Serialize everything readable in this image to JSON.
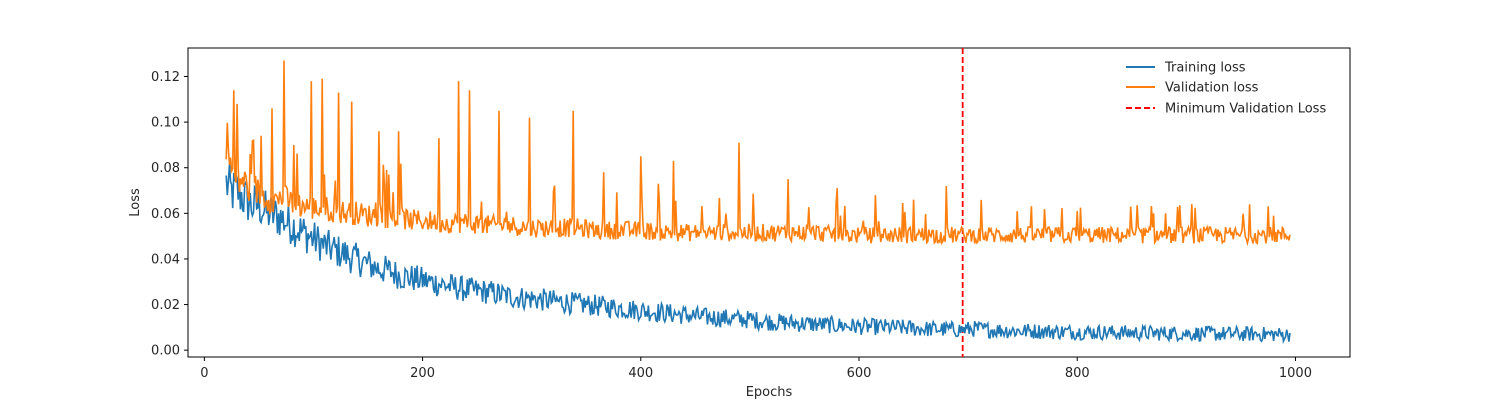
{
  "chart_data": {
    "type": "line",
    "title": "",
    "xlabel": "Epochs",
    "ylabel": "Loss",
    "xlim": [
      -15,
      1050
    ],
    "ylim": [
      -0.003,
      0.1325
    ],
    "xticks": [
      0,
      200,
      400,
      600,
      800,
      1000
    ],
    "yticks": [
      0.0,
      0.02,
      0.04,
      0.06,
      0.08,
      0.1,
      0.12
    ],
    "xtick_labels": [
      "0",
      "200",
      "400",
      "600",
      "800",
      "1000"
    ],
    "ytick_labels": [
      "0.00",
      "0.02",
      "0.04",
      "0.06",
      "0.08",
      "0.10",
      "0.12"
    ],
    "grid": false,
    "legend": {
      "placement": "top-right",
      "entries": [
        "Training loss",
        "Validation loss",
        "Minimum Validation Loss"
      ]
    },
    "colors": {
      "training": "#1f77b4",
      "validation": "#ff7f0e",
      "minimum": "#ff0000"
    },
    "series": [
      {
        "name": "Training loss",
        "x": [
          20,
          25,
          30,
          35,
          40,
          45,
          50,
          55,
          60,
          65,
          70,
          80,
          90,
          100,
          110,
          120,
          130,
          140,
          150,
          160,
          170,
          180,
          190,
          200,
          220,
          240,
          260,
          280,
          300,
          320,
          340,
          360,
          380,
          400,
          420,
          440,
          460,
          480,
          500,
          520,
          540,
          560,
          580,
          600,
          620,
          640,
          660,
          680,
          695,
          705,
          720,
          740,
          760,
          780,
          800,
          820,
          840,
          860,
          880,
          900,
          920,
          940,
          960,
          980,
          995
        ],
        "y": [
          0.072,
          0.068,
          0.069,
          0.066,
          0.064,
          0.062,
          0.063,
          0.06,
          0.059,
          0.058,
          0.057,
          0.054,
          0.051,
          0.048,
          0.045,
          0.043,
          0.041,
          0.039,
          0.037,
          0.035,
          0.034,
          0.032,
          0.031,
          0.03,
          0.028,
          0.026,
          0.025,
          0.023,
          0.022,
          0.021,
          0.02,
          0.019,
          0.018,
          0.017,
          0.016,
          0.015,
          0.014,
          0.0135,
          0.013,
          0.012,
          0.0115,
          0.011,
          0.0105,
          0.01,
          0.0098,
          0.0095,
          0.009,
          0.0088,
          0.0086,
          0.009,
          0.0085,
          0.0082,
          0.008,
          0.0078,
          0.0076,
          0.0075,
          0.0073,
          0.0072,
          0.0071,
          0.007,
          0.0069,
          0.0068,
          0.0067,
          0.0066,
          0.0065
        ]
      },
      {
        "name": "Validation loss",
        "x": [
          20,
          25,
          30,
          35,
          40,
          45,
          50,
          55,
          60,
          65,
          70,
          80,
          90,
          100,
          110,
          120,
          130,
          140,
          150,
          160,
          170,
          180,
          190,
          200,
          220,
          240,
          260,
          280,
          300,
          320,
          340,
          360,
          380,
          400,
          420,
          440,
          460,
          480,
          500,
          520,
          540,
          560,
          580,
          600,
          620,
          640,
          660,
          680,
          695,
          705,
          720,
          740,
          760,
          780,
          800,
          820,
          840,
          860,
          880,
          900,
          920,
          940,
          960,
          980,
          995
        ],
        "y": [
          0.09,
          0.075,
          0.07,
          0.072,
          0.068,
          0.069,
          0.066,
          0.065,
          0.064,
          0.063,
          0.065,
          0.062,
          0.061,
          0.06,
          0.06,
          0.059,
          0.058,
          0.058,
          0.057,
          0.057,
          0.056,
          0.056,
          0.055,
          0.055,
          0.054,
          0.054,
          0.053,
          0.053,
          0.052,
          0.052,
          0.052,
          0.051,
          0.051,
          0.051,
          0.05,
          0.05,
          0.05,
          0.05,
          0.05,
          0.05,
          0.05,
          0.05,
          0.049,
          0.049,
          0.049,
          0.049,
          0.049,
          0.049,
          0.049,
          0.049,
          0.049,
          0.049,
          0.049,
          0.049,
          0.049,
          0.049,
          0.049,
          0.049,
          0.049,
          0.049,
          0.049,
          0.049,
          0.049,
          0.049,
          0.049
        ]
      }
    ],
    "min_validation_epoch": 695,
    "spikes": {
      "x": [
        27,
        30,
        42,
        52,
        62,
        73,
        82,
        98,
        108,
        123,
        135,
        160,
        178,
        215,
        233,
        243,
        270,
        298,
        338,
        366,
        400,
        430,
        490,
        535,
        580,
        615,
        650,
        680,
        745,
        800,
        870,
        905,
        980
      ],
      "y": [
        0.114,
        0.108,
        0.086,
        0.094,
        0.106,
        0.127,
        0.09,
        0.118,
        0.119,
        0.113,
        0.109,
        0.096,
        0.096,
        0.093,
        0.118,
        0.114,
        0.105,
        0.102,
        0.105,
        0.078,
        0.085,
        0.083,
        0.091,
        0.075,
        0.071,
        0.068,
        0.066,
        0.072,
        0.061,
        0.061,
        0.06,
        0.064,
        0.059
      ]
    }
  }
}
